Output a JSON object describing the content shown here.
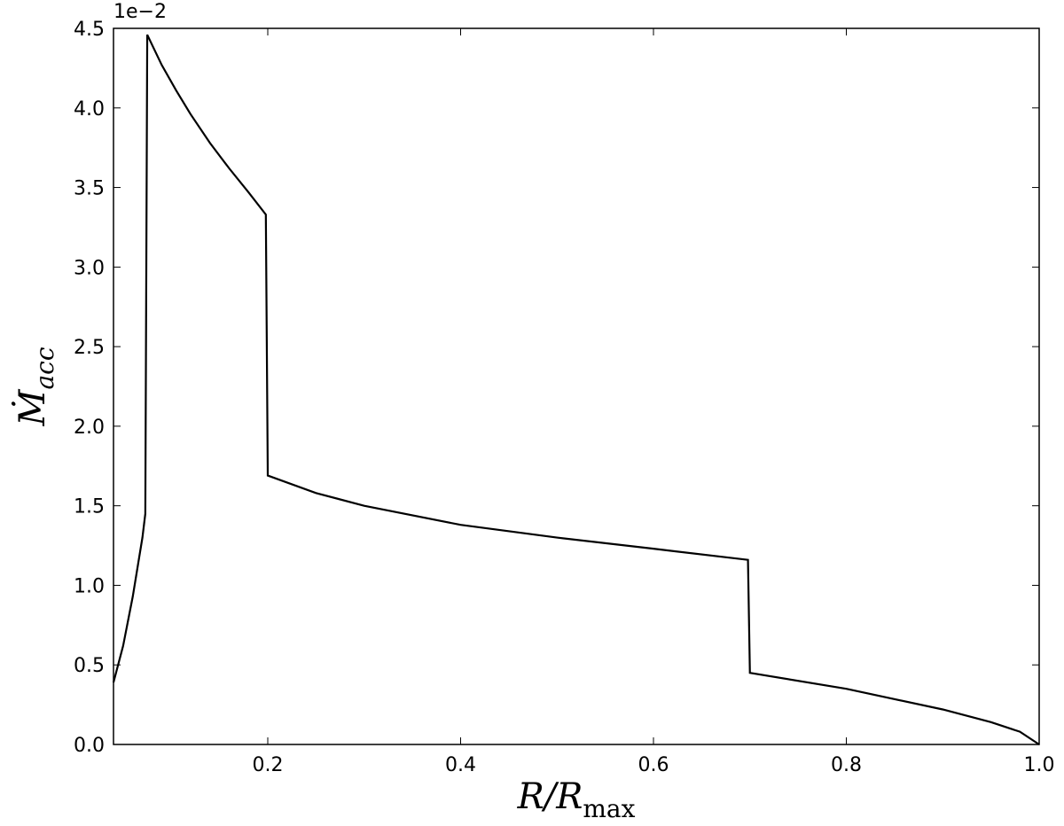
{
  "chart_data": {
    "type": "line",
    "offset_label": "1e−2",
    "xlabel": {
      "main": "R/R",
      "sub": "max"
    },
    "ylabel": {
      "main": "Ṁ",
      "sub": "acc"
    },
    "x": [
      0.04,
      0.05,
      0.06,
      0.07,
      0.073,
      0.075,
      0.09,
      0.105,
      0.12,
      0.14,
      0.16,
      0.18,
      0.198,
      0.2,
      0.25,
      0.3,
      0.4,
      0.5,
      0.6,
      0.698,
      0.7,
      0.8,
      0.9,
      0.95,
      0.98,
      1.0
    ],
    "series": [
      {
        "color": "#000000",
        "values": [
          0.39,
          0.62,
          0.93,
          1.3,
          1.45,
          4.46,
          4.27,
          4.11,
          3.96,
          3.78,
          3.62,
          3.47,
          3.33,
          1.69,
          1.58,
          1.5,
          1.38,
          1.3,
          1.23,
          1.16,
          0.45,
          0.35,
          0.22,
          0.14,
          0.08,
          0.0
        ]
      }
    ],
    "xlim": [
      0.04,
      1.0
    ],
    "ylim": [
      0,
      4.5
    ],
    "xticks": [
      0.2,
      0.4,
      0.6,
      0.8,
      {
        "value": 1,
        "label": "1.0"
      }
    ],
    "yticks": [
      {
        "value": 0,
        "label": "0.0"
      },
      0.5,
      {
        "value": 1,
        "label": "1.0"
      },
      1.5,
      {
        "value": 2,
        "label": "2.0"
      },
      2.5,
      {
        "value": 3,
        "label": "3.0"
      },
      3.5,
      {
        "value": 4,
        "label": "4.0"
      },
      4.5
    ]
  }
}
